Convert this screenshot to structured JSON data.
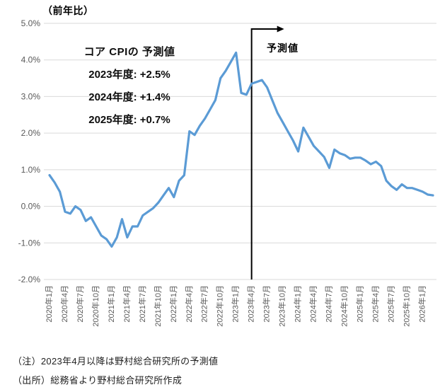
{
  "title": "（前年比）",
  "annotation": {
    "heading": "コア CPIの 予測値",
    "lines": [
      "2023年度: +2.5%",
      "2024年度: +1.4%",
      "2025年度: +0.7%"
    ]
  },
  "forecast_label": "予測値",
  "notes": [
    "（注）2023年4月以降は野村総合研究所の予測値",
    "（出所）総務省より野村総合研究所作成"
  ],
  "colors": {
    "line": "#5B9BD5",
    "grid": "#D9D9D9",
    "axis_text": "#595959",
    "divider": "#000000"
  },
  "chart_data": {
    "type": "line",
    "title": "（前年比）",
    "xlabel": "",
    "ylabel": "前年比",
    "ylim": [
      -2.0,
      5.0
    ],
    "grid": true,
    "legend": "none",
    "yticks": [
      5.0,
      4.0,
      3.0,
      2.0,
      1.0,
      0.0,
      -1.0,
      -2.0
    ],
    "ytick_labels": [
      "5.0%",
      "4.0%",
      "3.0%",
      "2.0%",
      "1.0%",
      "0.0%",
      "-1.0%",
      "-2.0%"
    ],
    "x_tick_labels": [
      "2020年1月",
      "2020年4月",
      "2020年7月",
      "2020年10月",
      "2021年1月",
      "2021年4月",
      "2021年7月",
      "2021年10月",
      "2022年1月",
      "2022年4月",
      "2022年7月",
      "2022年10月",
      "2023年1月",
      "2023年4月",
      "2023年7月",
      "2023年10月",
      "2024年1月",
      "2024年4月",
      "2024年7月",
      "2024年10月",
      "2025年1月",
      "2025年4月",
      "2025年7月",
      "2025年10月",
      "2026年1月"
    ],
    "x": [
      "2020年1月",
      "2020年2月",
      "2020年3月",
      "2020年4月",
      "2020年5月",
      "2020年6月",
      "2020年7月",
      "2020年8月",
      "2020年9月",
      "2020年10月",
      "2020年11月",
      "2020年12月",
      "2021年1月",
      "2021年2月",
      "2021年3月",
      "2021年4月",
      "2021年5月",
      "2021年6月",
      "2021年7月",
      "2021年8月",
      "2021年9月",
      "2021年10月",
      "2021年11月",
      "2021年12月",
      "2022年1月",
      "2022年2月",
      "2022年3月",
      "2022年4月",
      "2022年5月",
      "2022年6月",
      "2022年7月",
      "2022年8月",
      "2022年9月",
      "2022年10月",
      "2022年11月",
      "2022年12月",
      "2023年1月",
      "2023年2月",
      "2023年3月",
      "2023年4月",
      "2023年5月",
      "2023年6月",
      "2023年7月",
      "2023年8月",
      "2023年9月",
      "2023年10月",
      "2023年11月",
      "2023年12月",
      "2024年1月",
      "2024年2月",
      "2024年3月",
      "2024年4月",
      "2024年5月",
      "2024年6月",
      "2024年7月",
      "2024年8月",
      "2024年9月",
      "2024年10月",
      "2024年11月",
      "2024年12月",
      "2025年1月",
      "2025年2月",
      "2025年3月",
      "2025年4月",
      "2025年5月",
      "2025年6月",
      "2025年7月",
      "2025年8月",
      "2025年9月",
      "2025年10月",
      "2025年11月",
      "2025年12月",
      "2026年1月",
      "2026年2月",
      "2026年3月"
    ],
    "series": [
      {
        "name": "コアCPI（前年比）",
        "color": "#5B9BD5",
        "values": [
          0.85,
          0.65,
          0.4,
          -0.15,
          -0.2,
          0.0,
          -0.1,
          -0.4,
          -0.3,
          -0.55,
          -0.8,
          -0.9,
          -1.1,
          -0.85,
          -0.35,
          -0.85,
          -0.55,
          -0.55,
          -0.25,
          -0.15,
          -0.05,
          0.1,
          0.3,
          0.5,
          0.25,
          0.7,
          0.85,
          2.05,
          1.95,
          2.2,
          2.4,
          2.65,
          2.9,
          3.5,
          3.7,
          3.95,
          4.2,
          3.1,
          3.05,
          3.35,
          3.4,
          3.45,
          3.25,
          2.9,
          2.55,
          2.3,
          2.05,
          1.8,
          1.5,
          2.15,
          1.9,
          1.65,
          1.5,
          1.35,
          1.05,
          1.55,
          1.45,
          1.4,
          1.3,
          1.33,
          1.33,
          1.25,
          1.15,
          1.22,
          1.1,
          0.7,
          0.55,
          0.45,
          0.6,
          0.5,
          0.5,
          0.45,
          0.4,
          0.32,
          0.3
        ]
      }
    ],
    "forecast_start": "2023年4月",
    "forecast_index": 39,
    "annotations": {
      "forecast_marker_label": "予測値",
      "forecast_summary": [
        "コア CPIの 予測値",
        "2023年度: +2.5%",
        "2024年度: +1.4%",
        "2025年度: +0.7%"
      ]
    }
  }
}
